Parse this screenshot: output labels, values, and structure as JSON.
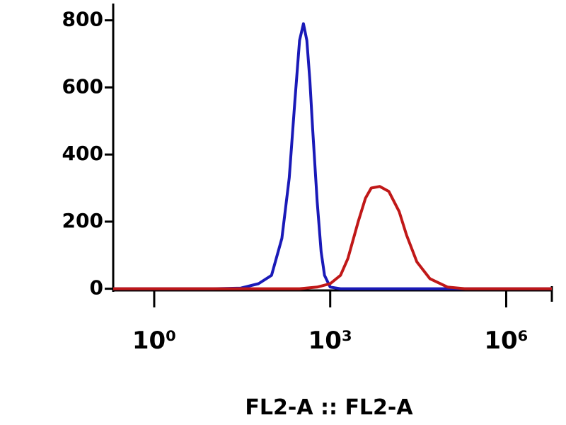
{
  "chart_data": {
    "type": "line",
    "xlabel": "FL2-A :: FL2-A",
    "xscale": "log",
    "xlim": [
      0.2,
      6000000
    ],
    "xticks": [
      {
        "value": 1,
        "label": "10⁰"
      },
      {
        "value": 1000,
        "label": "10³"
      },
      {
        "value": 1000000,
        "label": "10⁶"
      }
    ],
    "ylim": [
      -5,
      850
    ],
    "yticks": [
      0,
      200,
      400,
      600,
      800
    ],
    "series": [
      {
        "color": "#1a1ab8",
        "x": [
          0.2,
          10,
          30,
          60,
          100,
          150,
          200,
          250,
          300,
          350,
          400,
          450,
          500,
          600,
          700,
          800,
          1000,
          1500,
          6000000
        ],
        "values": [
          0,
          0,
          2,
          15,
          40,
          150,
          330,
          560,
          740,
          790,
          740,
          620,
          480,
          260,
          110,
          40,
          5,
          0,
          0
        ]
      },
      {
        "color": "#c01818",
        "x": [
          0.2,
          300,
          600,
          1000,
          1500,
          2000,
          3000,
          4000,
          5000,
          7000,
          10000,
          15000,
          20000,
          30000,
          50000,
          100000,
          200000,
          6000000
        ],
        "values": [
          0,
          0,
          5,
          15,
          40,
          90,
          200,
          270,
          300,
          305,
          290,
          230,
          160,
          80,
          30,
          5,
          0,
          0
        ]
      }
    ]
  }
}
